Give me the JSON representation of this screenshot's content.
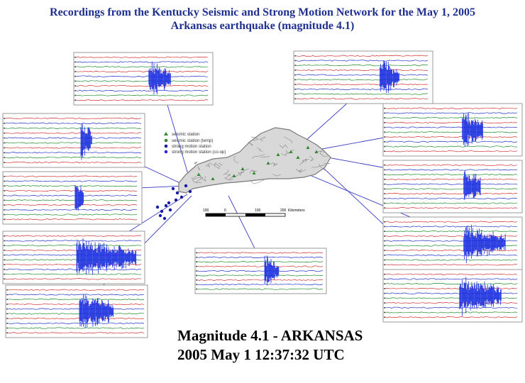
{
  "title": {
    "line1": "Recordings from the Kentucky Seismic and Strong Motion Network for the May 1, 2005",
    "line2": "Arkansas earthquake (magnitude 4.1)"
  },
  "caption": {
    "line1": "Magnitude 4.1 - ARKANSAS",
    "line2": "2005 May 1 12:37:32 UTC"
  },
  "map": {
    "legend": [
      {
        "label": "seismic station",
        "marker": "triangle",
        "color": "#2e8b2e"
      },
      {
        "label": "seismic station (temp)",
        "marker": "circle",
        "color": "#2e8b2e"
      },
      {
        "label": "strong motion station",
        "marker": "circle",
        "color": "#1a1aa6"
      },
      {
        "label": "strong motion station (co-op)",
        "marker": "circle",
        "color": "#2a2ae0"
      }
    ],
    "scale_labels": [
      "100",
      "0",
      "100",
      "200"
    ],
    "scale_unit": "Kilometers"
  },
  "colors": {
    "trace_palette": [
      "#d43030",
      "#2030c8",
      "#1f8a2a",
      "#222222"
    ],
    "burst": "#1a2fe0",
    "connector": "#3a3fc4",
    "map_fill": "#d8d8d8",
    "map_line": "#7a7a7a",
    "title": "#1f2f8f"
  }
}
